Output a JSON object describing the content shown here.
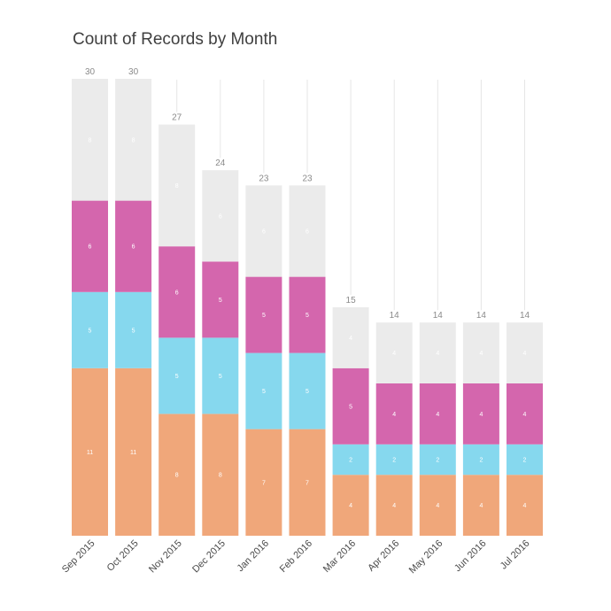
{
  "chart_data": {
    "type": "bar",
    "stacked": true,
    "title": "Count of Records by Month",
    "xlabel": "",
    "ylabel": "",
    "ylim": [
      0,
      30
    ],
    "grid": "vertical",
    "categories": [
      "Sep 2015",
      "Oct 2015",
      "Nov 2015",
      "Dec 2015",
      "Jan 2016",
      "Feb 2016",
      "Mar 2016",
      "Apr 2016",
      "May 2016",
      "Jun 2016",
      "Jul 2016"
    ],
    "totals": [
      30,
      30,
      27,
      24,
      23,
      23,
      15,
      14,
      14,
      14,
      14
    ],
    "series": [
      {
        "color": "#f0a77a",
        "values": [
          11,
          11,
          8,
          8,
          7,
          7,
          4,
          4,
          4,
          4,
          4
        ]
      },
      {
        "color": "#86d8ee",
        "values": [
          5,
          5,
          5,
          5,
          5,
          5,
          2,
          2,
          2,
          2,
          2
        ]
      },
      {
        "color": "#d466ad",
        "values": [
          6,
          6,
          6,
          5,
          5,
          5,
          5,
          4,
          4,
          4,
          4
        ]
      },
      {
        "color": "#ebebeb",
        "values": [
          8,
          8,
          8,
          6,
          6,
          6,
          4,
          4,
          4,
          4,
          4
        ]
      }
    ]
  }
}
